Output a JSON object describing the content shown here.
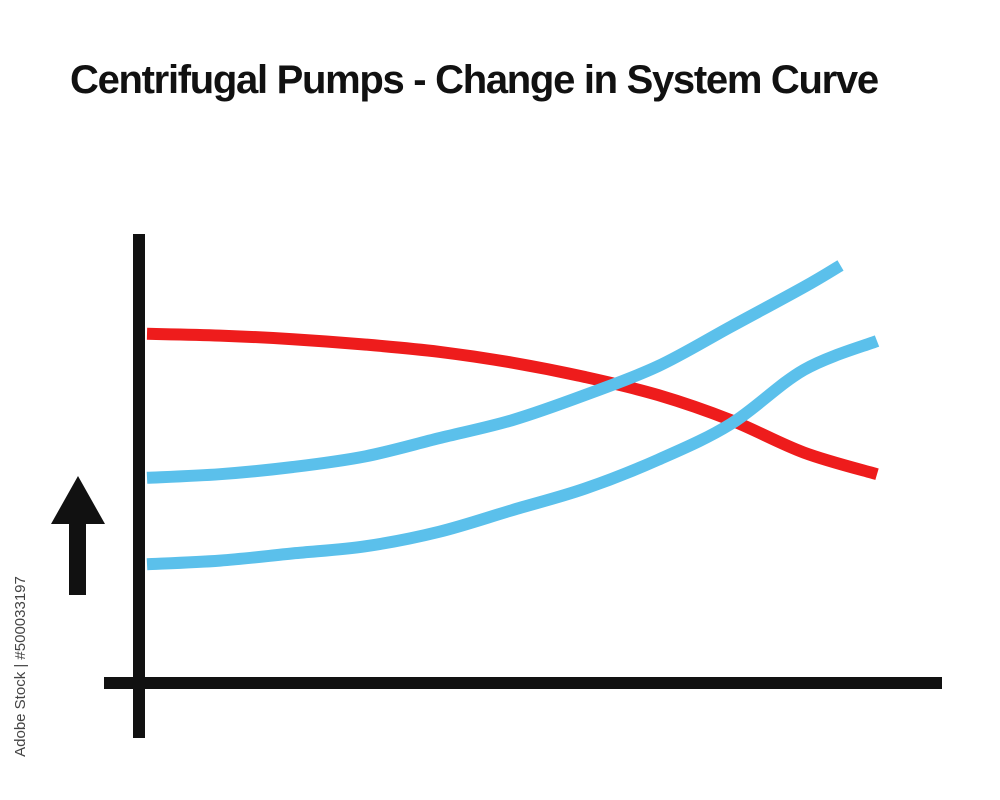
{
  "chart_data": {
    "type": "line",
    "title": "Centrifugal Pumps - Change in System Curve",
    "xlabel": "",
    "ylabel": "",
    "xlim": [
      0,
      100
    ],
    "ylim": [
      0,
      100
    ],
    "grid": false,
    "legend": "none",
    "y_axis_indicator": "up-arrow",
    "series": [
      {
        "role": "pump-curve",
        "color": "#ee1c1c",
        "x": [
          0,
          10,
          20,
          30,
          40,
          50,
          60,
          70,
          80,
          90,
          100
        ],
        "y": [
          87,
          86.5,
          85.5,
          84,
          82,
          79,
          75,
          70,
          63,
          54,
          48
        ]
      },
      {
        "role": "system-curve-1",
        "color": "#5bc0eb",
        "x": [
          0,
          10,
          20,
          30,
          40,
          50,
          60,
          70,
          80,
          90,
          95
        ],
        "y": [
          47,
          48,
          50,
          53,
          58,
          63,
          70,
          78,
          89,
          100,
          106
        ]
      },
      {
        "role": "system-curve-2",
        "color": "#5bc0eb",
        "x": [
          0,
          10,
          20,
          30,
          40,
          50,
          60,
          70,
          80,
          90,
          100
        ],
        "y": [
          23,
          24,
          26,
          28,
          32,
          38,
          44,
          52,
          62,
          77,
          85
        ]
      }
    ],
    "watermark": "Adobe Stock | #500033197"
  }
}
